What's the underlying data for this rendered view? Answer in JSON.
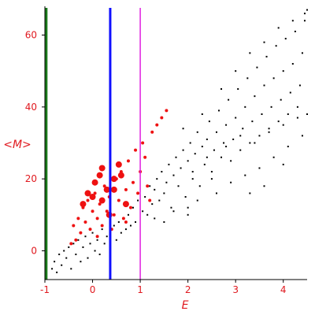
{
  "chart_data": {
    "type": "scatter",
    "title": "",
    "xlabel": "E",
    "ylabel": "<M>",
    "xlim": [
      -1.0,
      4.5
    ],
    "ylim": [
      -8,
      68
    ],
    "xticks": [
      -1,
      0,
      1,
      2,
      3,
      4
    ],
    "yticks": [
      0,
      20,
      40,
      60
    ],
    "tick_color": "#e0191f",
    "axis_color": "#000000",
    "vertical_lines": [
      {
        "x": -0.97,
        "color": "#1a7a1a",
        "style": "thick"
      },
      {
        "x": 0.37,
        "color": "#1010ff",
        "style": "thick"
      },
      {
        "x": 1.0,
        "color": "#e020e0",
        "style": "thin"
      }
    ],
    "series": [
      {
        "color": "#000000",
        "marker_size": "small",
        "points": [
          [
            -0.85,
            -5
          ],
          [
            -0.8,
            -3
          ],
          [
            -0.75,
            -6
          ],
          [
            -0.7,
            -1
          ],
          [
            -0.65,
            -4
          ],
          [
            -0.6,
            0
          ],
          [
            -0.55,
            -2
          ],
          [
            -0.5,
            1
          ],
          [
            -0.45,
            -5
          ],
          [
            -0.4,
            2
          ],
          [
            -0.35,
            -1
          ],
          [
            -0.3,
            3
          ],
          [
            -0.25,
            -3
          ],
          [
            -0.2,
            1
          ],
          [
            -0.15,
            4
          ],
          [
            -0.1,
            -2
          ],
          [
            -0.05,
            2
          ],
          [
            0.0,
            5
          ],
          [
            0.05,
            0
          ],
          [
            0.1,
            3
          ],
          [
            0.15,
            -1
          ],
          [
            0.2,
            6
          ],
          [
            0.25,
            2
          ],
          [
            0.3,
            4
          ],
          [
            0.45,
            7
          ],
          [
            0.5,
            3
          ],
          [
            0.55,
            8
          ],
          [
            0.6,
            5
          ],
          [
            0.65,
            9
          ],
          [
            0.7,
            6
          ],
          [
            0.75,
            10
          ],
          [
            0.8,
            7
          ],
          [
            0.85,
            12
          ],
          [
            0.9,
            8
          ],
          [
            0.95,
            14
          ],
          [
            1.05,
            11
          ],
          [
            1.1,
            15
          ],
          [
            1.15,
            10
          ],
          [
            1.2,
            18
          ],
          [
            1.25,
            13
          ],
          [
            1.3,
            17
          ],
          [
            1.35,
            20
          ],
          [
            1.4,
            14
          ],
          [
            1.45,
            22
          ],
          [
            1.5,
            16
          ],
          [
            1.55,
            19
          ],
          [
            1.6,
            24
          ],
          [
            1.65,
            12
          ],
          [
            1.7,
            21
          ],
          [
            1.75,
            26
          ],
          [
            1.8,
            18
          ],
          [
            1.85,
            23
          ],
          [
            1.9,
            28
          ],
          [
            1.95,
            15
          ],
          [
            2.0,
            25
          ],
          [
            2.05,
            30
          ],
          [
            2.1,
            20
          ],
          [
            2.15,
            27
          ],
          [
            2.2,
            33
          ],
          [
            2.25,
            18
          ],
          [
            2.3,
            29
          ],
          [
            2.35,
            24
          ],
          [
            2.4,
            31
          ],
          [
            2.45,
            36
          ],
          [
            2.5,
            22
          ],
          [
            2.55,
            28
          ],
          [
            2.6,
            33
          ],
          [
            2.65,
            39
          ],
          [
            2.7,
            26
          ],
          [
            2.75,
            30
          ],
          [
            2.8,
            35
          ],
          [
            2.85,
            42
          ],
          [
            2.9,
            25
          ],
          [
            2.95,
            31
          ],
          [
            3.0,
            37
          ],
          [
            3.05,
            45
          ],
          [
            3.1,
            28
          ],
          [
            3.15,
            34
          ],
          [
            3.2,
            40
          ],
          [
            3.25,
            48
          ],
          [
            3.3,
            30
          ],
          [
            3.35,
            36
          ],
          [
            3.4,
            43
          ],
          [
            3.45,
            51
          ],
          [
            3.5,
            32
          ],
          [
            3.55,
            38
          ],
          [
            3.6,
            46
          ],
          [
            3.65,
            54
          ],
          [
            3.7,
            34
          ],
          [
            3.75,
            40
          ],
          [
            3.8,
            48
          ],
          [
            3.85,
            57
          ],
          [
            3.9,
            36
          ],
          [
            3.95,
            42
          ],
          [
            4.0,
            50
          ],
          [
            4.05,
            59
          ],
          [
            4.1,
            38
          ],
          [
            4.15,
            44
          ],
          [
            4.2,
            52
          ],
          [
            4.25,
            61
          ],
          [
            4.3,
            40
          ],
          [
            4.35,
            46
          ],
          [
            4.4,
            55
          ],
          [
            4.45,
            64
          ],
          [
            4.5,
            67
          ],
          [
            1.3,
            9
          ],
          [
            1.5,
            8
          ],
          [
            1.7,
            11
          ],
          [
            2.0,
            12
          ],
          [
            2.2,
            14
          ],
          [
            2.6,
            16
          ],
          [
            2.9,
            19
          ],
          [
            3.2,
            21
          ],
          [
            3.5,
            23
          ],
          [
            3.8,
            26
          ],
          [
            4.1,
            29
          ],
          [
            4.4,
            32
          ],
          [
            1.9,
            34
          ],
          [
            2.3,
            38
          ],
          [
            2.7,
            45
          ],
          [
            3.0,
            50
          ],
          [
            3.3,
            55
          ],
          [
            3.6,
            58
          ],
          [
            3.9,
            62
          ],
          [
            4.2,
            64
          ],
          [
            4.45,
            66
          ],
          [
            2.1,
            22
          ],
          [
            2.4,
            26
          ],
          [
            2.8,
            29
          ],
          [
            3.1,
            32
          ],
          [
            3.4,
            30
          ],
          [
            3.7,
            33
          ],
          [
            4.0,
            35
          ],
          [
            4.3,
            37
          ],
          [
            4.5,
            38
          ],
          [
            2.5,
            20
          ],
          [
            3.6,
            18
          ],
          [
            3.3,
            16
          ],
          [
            2.0,
            10
          ],
          [
            4.0,
            24
          ]
        ]
      },
      {
        "color": "#ee1111",
        "marker_size": "medium",
        "points": [
          [
            -0.45,
            2
          ],
          [
            -0.4,
            7
          ],
          [
            -0.3,
            9
          ],
          [
            -0.25,
            5
          ],
          [
            -0.2,
            12
          ],
          [
            -0.15,
            8
          ],
          [
            -0.1,
            14
          ],
          [
            -0.05,
            6
          ],
          [
            0.0,
            11
          ],
          [
            0.05,
            16
          ],
          [
            0.1,
            9
          ],
          [
            0.15,
            13
          ],
          [
            0.2,
            7
          ],
          [
            0.25,
            18
          ],
          [
            0.3,
            11
          ],
          [
            0.35,
            15
          ],
          [
            0.45,
            10
          ],
          [
            0.5,
            20
          ],
          [
            0.55,
            14
          ],
          [
            0.6,
            22
          ],
          [
            0.65,
            9
          ],
          [
            0.7,
            17
          ],
          [
            0.75,
            25
          ],
          [
            0.8,
            12
          ],
          [
            0.85,
            19
          ],
          [
            0.9,
            28
          ],
          [
            0.95,
            16
          ],
          [
            1.0,
            22
          ],
          [
            1.05,
            30
          ],
          [
            1.1,
            26
          ],
          [
            1.15,
            18
          ],
          [
            1.2,
            14
          ],
          [
            1.25,
            33
          ],
          [
            1.35,
            35
          ],
          [
            1.45,
            37
          ],
          [
            1.55,
            39
          ],
          [
            -0.35,
            3
          ],
          [
            0.1,
            4
          ],
          [
            0.4,
            6
          ],
          [
            0.7,
            8
          ]
        ]
      },
      {
        "color": "#ee1111",
        "marker_size": "large",
        "points": [
          [
            -0.2,
            13
          ],
          [
            -0.1,
            16
          ],
          [
            0.0,
            15
          ],
          [
            0.05,
            19
          ],
          [
            0.15,
            21
          ],
          [
            0.2,
            14
          ],
          [
            0.3,
            17
          ],
          [
            0.45,
            20
          ],
          [
            0.55,
            24
          ],
          [
            0.6,
            21
          ],
          [
            0.35,
            10
          ],
          [
            0.2,
            23
          ],
          [
            0.7,
            13
          ],
          [
            0.45,
            17
          ]
        ]
      }
    ]
  }
}
